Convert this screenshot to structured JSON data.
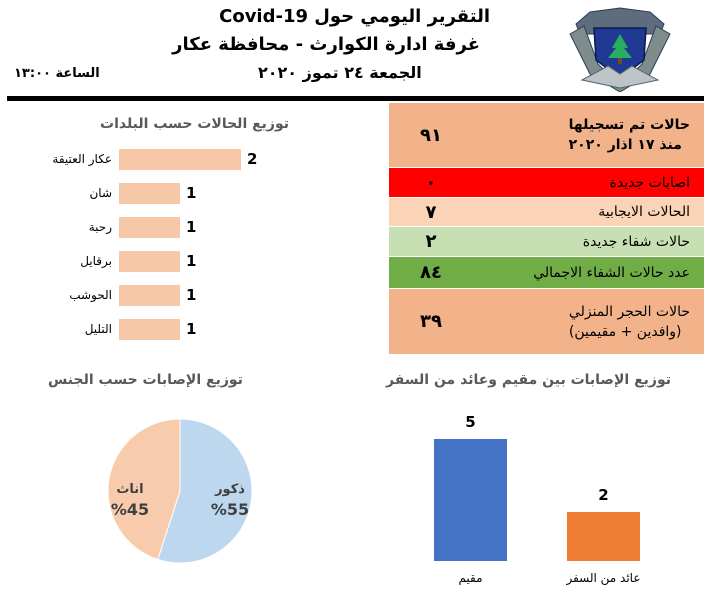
{
  "header": {
    "title_line1": "التقرير اليومي حول Covid-19",
    "title_line2": "غرفة ادارة الكوارث - محافظة عكار",
    "date": "الجمعة ٢٤ تموز ٢٠٢٠",
    "time": "الساعة ١٣:٠٠"
  },
  "logo": {
    "icon": "lebanon-cedar-shield-logo"
  },
  "stats": [
    {
      "label": "حالات تم تسجيلها",
      "label2": "منذ ١٧ اذار ٢٠٢٠",
      "value": "٩١",
      "bg": "#f3b38a",
      "bold": true
    },
    {
      "label": "اصابات جديدة",
      "label2": "",
      "value": "٠",
      "bg": "#ff0000",
      "bold": false
    },
    {
      "label": "الحالات الايجابية",
      "label2": "",
      "value": "٧",
      "bg": "#fbd4b8",
      "bold": false
    },
    {
      "label": "حالات شفاء جديدة",
      "label2": "",
      "value": "٢",
      "bg": "#c6e0b4",
      "bold": false
    },
    {
      "label": "عدد حالات الشفاء الاجمالي",
      "label2": "",
      "value": "٨٤",
      "bg": "#70ad47",
      "bold": false
    },
    {
      "label": "حالات الحجر المنزلي",
      "label2": "(وافدين + مقيمين)",
      "value": "٣٩",
      "bg": "#f3b38a",
      "bold": false
    }
  ],
  "chart_data": [
    {
      "type": "bar",
      "orientation": "horizontal",
      "title": "توزيع الحالات حسب البلدات",
      "categories": [
        "عكار العتيقة",
        "شان",
        "رحبة",
        "برقايل",
        "الحوشب",
        "التليل"
      ],
      "values": [
        2,
        1,
        1,
        1,
        1,
        1
      ],
      "color": "#f7c8a8"
    },
    {
      "type": "pie",
      "title": "توزيع الإصابات حسب الجنس",
      "slices": [
        {
          "name": "ذكور",
          "value": 55,
          "label": "%55",
          "color": "#bdd7ee"
        },
        {
          "name": "اناث",
          "value": 45,
          "label": "%45",
          "color": "#f8cbad"
        }
      ]
    },
    {
      "type": "bar",
      "title": "توزيع الإصابات بين مقيم وعائد من السفر",
      "categories": [
        "مقيم",
        "عائد من السفر"
      ],
      "values": [
        5,
        2
      ],
      "colors": [
        "#4472c4",
        "#ed7d31"
      ]
    }
  ]
}
